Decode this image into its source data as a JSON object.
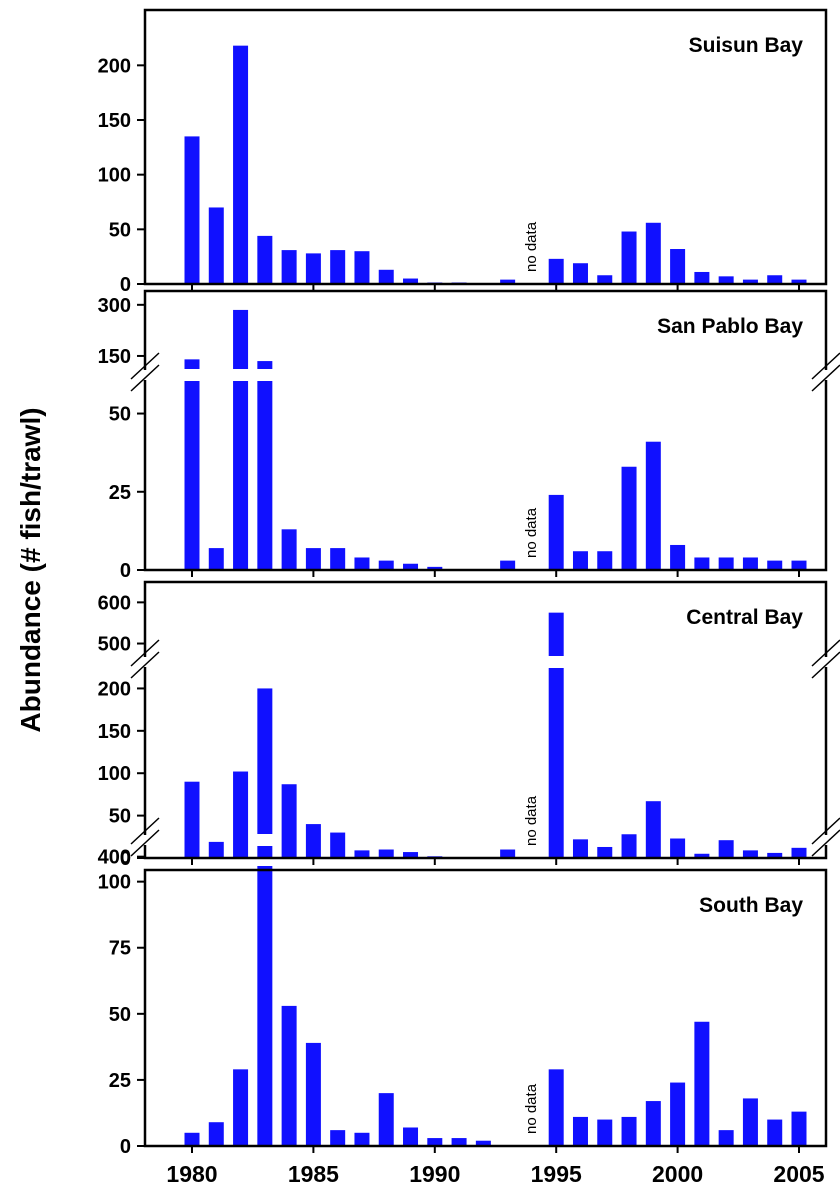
{
  "ylabel": "Abundance (# fish/trawl)",
  "years": [
    1980,
    1981,
    1982,
    1983,
    1984,
    1985,
    1986,
    1987,
    1988,
    1989,
    1990,
    1991,
    1992,
    1993,
    1994,
    1995,
    1996,
    1997,
    1998,
    1999,
    2000,
    2001,
    2002,
    2003,
    2004,
    2005
  ],
  "xticks": [
    1980,
    1985,
    1990,
    1995,
    2000,
    2005
  ],
  "colors": {
    "bar": "#1010ff",
    "axis": "#000000",
    "background": "#ffffff"
  },
  "chart_data": [
    {
      "type": "bar",
      "title": "Suisun Bay",
      "x": [
        1980,
        1981,
        1982,
        1983,
        1984,
        1985,
        1986,
        1987,
        1988,
        1989,
        1990,
        1991,
        1992,
        1993,
        1994,
        1995,
        1996,
        1997,
        1998,
        1999,
        2000,
        2001,
        2002,
        2003,
        2004,
        2005
      ],
      "values": [
        135,
        70,
        218,
        44,
        31,
        28,
        31,
        30,
        13,
        5,
        1,
        1,
        0,
        4,
        null,
        23,
        19,
        8,
        48,
        56,
        32,
        11,
        7,
        4,
        8,
        4
      ],
      "ylim": [
        0,
        225
      ],
      "yticks": [
        0,
        50,
        100,
        150,
        200
      ],
      "no_data_year": 1994,
      "no_data_label": "no data"
    },
    {
      "type": "bar",
      "title": "San Pablo Bay",
      "x": [
        1980,
        1981,
        1982,
        1983,
        1984,
        1985,
        1986,
        1987,
        1988,
        1989,
        1990,
        1991,
        1992,
        1993,
        1994,
        1995,
        1996,
        1997,
        1998,
        1999,
        2000,
        2001,
        2002,
        2003,
        2004,
        2005
      ],
      "values": [
        140,
        7,
        285,
        135,
        13,
        7,
        7,
        4,
        3,
        2,
        1,
        0,
        0,
        3,
        null,
        24,
        6,
        6,
        33,
        41,
        8,
        4,
        4,
        4,
        3,
        3
      ],
      "yticks": [
        0,
        25,
        50,
        150,
        300
      ],
      "y_break": {
        "lower_max": 62,
        "upper_min": 100,
        "upper_max": 320
      },
      "no_data_year": 1994,
      "no_data_label": "no data"
    },
    {
      "type": "bar",
      "title": "Central Bay",
      "x": [
        1980,
        1981,
        1982,
        1983,
        1984,
        1985,
        1986,
        1987,
        1988,
        1989,
        1990,
        1991,
        1992,
        1993,
        1994,
        1995,
        1996,
        1997,
        1998,
        1999,
        2000,
        2001,
        2002,
        2003,
        2004,
        2005
      ],
      "values": [
        90,
        19,
        102,
        200,
        87,
        40,
        30,
        9,
        10,
        7,
        2,
        0,
        0,
        10,
        null,
        575,
        22,
        13,
        28,
        67,
        23,
        5,
        21,
        9,
        6,
        12
      ],
      "yticks": [
        0,
        50,
        100,
        150,
        200,
        500,
        600
      ],
      "y_break": {
        "lower_max": 230,
        "upper_min": 460,
        "upper_max": 630
      },
      "no_data_year": 1994,
      "no_data_label": "no data"
    },
    {
      "type": "bar",
      "title": "South Bay",
      "x": [
        1980,
        1981,
        1982,
        1983,
        1984,
        1985,
        1986,
        1987,
        1988,
        1989,
        1990,
        1991,
        1992,
        1993,
        1994,
        1995,
        1996,
        1997,
        1998,
        1999,
        2000,
        2001,
        2002,
        2003,
        2004,
        2005
      ],
      "values": [
        5,
        9,
        29,
        420,
        53,
        39,
        6,
        5,
        20,
        7,
        3,
        3,
        2,
        0,
        null,
        29,
        11,
        10,
        11,
        17,
        24,
        47,
        6,
        18,
        10,
        13
      ],
      "yticks": [
        0,
        25,
        50,
        75,
        100,
        400
      ],
      "y_break": {
        "lower_max": 115,
        "upper_min": 360,
        "upper_max": 450
      },
      "no_data_year": 1994,
      "no_data_label": "no data"
    }
  ]
}
